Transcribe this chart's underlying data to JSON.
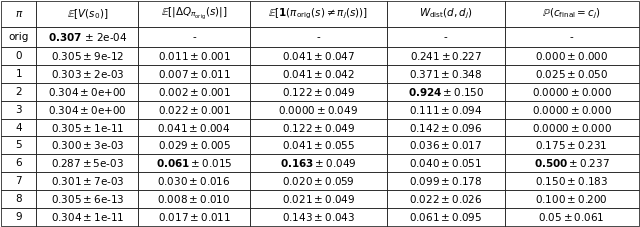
{
  "col_headers": [
    "$\\pi$",
    "$\\mathbb{E}[V(s_0)]$",
    "$\\mathbb{E}[|\\Delta Q_{\\pi_{\\mathrm{orig}}}(s)|]$",
    "$\\mathbb{E}[\\mathbf{1}(\\pi_{\\mathrm{orig}}(s) \\neq \\pi_j(s))]$",
    "$W_{\\mathrm{dist}}(d, d_j)$",
    "$\\mathbb{P}(c_{\\mathrm{final}} = c_j)$"
  ],
  "rows": [
    [
      "orig",
      "\\textbf{0.307} $\\pm$ 2e-04",
      "-",
      "-",
      "-",
      "-"
    ],
    [
      "0",
      "$0.305 \\pm 9$e-12",
      "$0.011 \\pm 0.001$",
      "$0.041 \\pm 0.047$",
      "$0.241 \\pm 0.227$",
      "$0.000 \\pm 0.000$"
    ],
    [
      "1",
      "$0.303 \\pm 2$e-03",
      "$0.007 \\pm 0.011$",
      "$0.041 \\pm 0.042$",
      "$0.371 \\pm 0.348$",
      "$0.025 \\pm 0.050$"
    ],
    [
      "2",
      "$0.304 \\pm 0$e+00",
      "$0.002 \\pm 0.001$",
      "$0.122 \\pm 0.049$",
      "\\textbf{0.924} $\\pm$ 0.150",
      "$0.0000 \\pm 0.000$"
    ],
    [
      "3",
      "$0.304 \\pm 0$e+00",
      "$0.022 \\pm 0.001$",
      "$0.0000 \\pm 0.049$",
      "$0.111 \\pm 0.094$",
      "$0.0000 \\pm 0.000$"
    ],
    [
      "4",
      "$0.305 \\pm 1$e-11",
      "$0.041 \\pm 0.004$",
      "$0.122 \\pm 0.049$",
      "$0.142 \\pm 0.096$",
      "$0.0000 \\pm 0.000$"
    ],
    [
      "5",
      "$0.300 \\pm 3$e-03",
      "$0.029 \\pm 0.005$",
      "$0.041 \\pm 0.055$",
      "$0.036 \\pm 0.017$",
      "$0.175 \\pm 0.231$"
    ],
    [
      "6",
      "$0.287 \\pm 5$e-03",
      "\\textbf{0.061} $\\pm$ 0.015",
      "\\textbf{0.163} $\\pm$ 0.049",
      "$0.040 \\pm 0.051$",
      "\\textbf{0.500} $\\pm$ 0.237"
    ],
    [
      "7",
      "$0.301 \\pm 7$e-03",
      "$0.030 \\pm 0.016$",
      "$0.020 \\pm 0.059$",
      "$0.099 \\pm 0.178$",
      "$0.150 \\pm 0.183$"
    ],
    [
      "8",
      "$0.305 \\pm 6$e-13",
      "$0.008 \\pm 0.010$",
      "$0.021 \\pm 0.049$",
      "$0.022 \\pm 0.026$",
      "$0.100 \\pm 0.200$"
    ],
    [
      "9",
      "$0.304 \\pm 1$e-11",
      "$0.017 \\pm 0.011$",
      "$0.143 \\pm 0.043$",
      "$0.061 \\pm 0.095$",
      "$0.05 \\pm 0.061$"
    ]
  ],
  "bold_cells": {
    "0_1": true,
    "3_4": true,
    "7_2": true,
    "7_3": true,
    "7_5": true
  },
  "figsize": [
    6.4,
    2.27
  ],
  "dpi": 100
}
